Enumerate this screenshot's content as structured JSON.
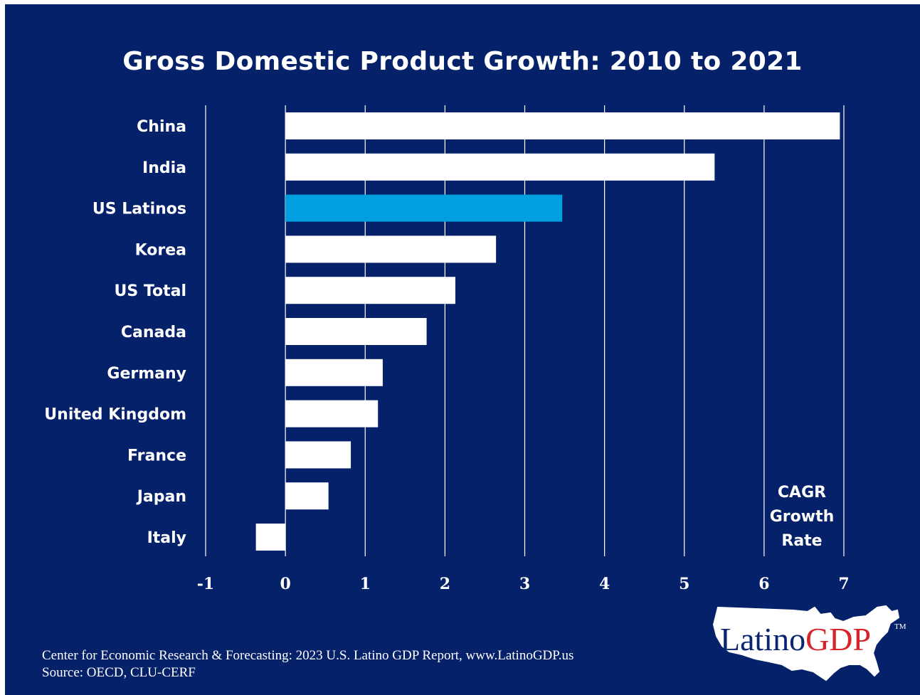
{
  "colors": {
    "background": "#05216a",
    "bar": "#ffffff",
    "highlight": "#009fe0",
    "grid": "#ffffff",
    "logo_red": "#d6242a",
    "logo_navy": "#0a2470"
  },
  "chart_data": {
    "type": "bar",
    "orientation": "horizontal",
    "title": "Gross Domestic Product Growth: 2010 to 2021",
    "categories": [
      "China",
      "India",
      "US Latinos",
      "Korea",
      "US Total",
      "Canada",
      "Germany",
      "United Kingdom",
      "France",
      "Japan",
      "Italy"
    ],
    "values": [
      6.95,
      5.38,
      3.47,
      2.64,
      2.13,
      1.77,
      1.22,
      1.16,
      0.82,
      0.54,
      -0.37
    ],
    "highlight_category": "US Latinos",
    "xlim": [
      -1,
      7
    ],
    "xticks": [
      "-1",
      "0",
      "1",
      "2",
      "3",
      "4",
      "5",
      "6",
      "7"
    ],
    "grid": "vertical",
    "annotation": [
      "CAGR",
      "Growth",
      "Rate"
    ]
  },
  "footer": {
    "line1": "Center for Economic Research & Forecasting: 2023 U.S. Latino GDP Report, www.LatinoGDP.us",
    "line2": "Source: OECD, CLU-CERF"
  },
  "logo": {
    "part1": "Latino",
    "part2": "GDP",
    "tm": "TM"
  }
}
